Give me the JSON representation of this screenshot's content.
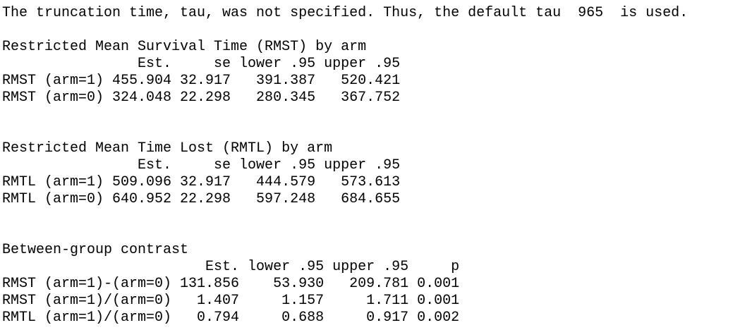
{
  "header": {
    "note": "The truncation time, tau, was not specified. Thus, the default tau  965  is used."
  },
  "sections": [
    {
      "title": "Restricted Mean Survival Time (RMST) by arm",
      "columns": "                Est.     se lower .95 upper .95",
      "rows": [
        "RMST (arm=1) 455.904 32.917   391.387   520.421",
        "RMST (arm=0) 324.048 22.298   280.345   367.752"
      ]
    },
    {
      "title": "Restricted Mean Time Lost (RMTL) by arm",
      "columns": "                Est.     se lower .95 upper .95",
      "rows": [
        "RMTL (arm=1) 509.096 32.917   444.579   573.613",
        "RMTL (arm=0) 640.952 22.298   597.248   684.655"
      ]
    },
    {
      "title": "Between-group contrast",
      "columns": "                        Est. lower .95 upper .95     p",
      "rows": [
        "RMST (arm=1)-(arm=0) 131.856    53.930   209.781 0.001",
        "RMST (arm=1)/(arm=0)   1.407     1.157     1.711 0.001",
        "RMTL (arm=1)/(arm=0)   0.794     0.688     0.917 0.002"
      ]
    }
  ]
}
